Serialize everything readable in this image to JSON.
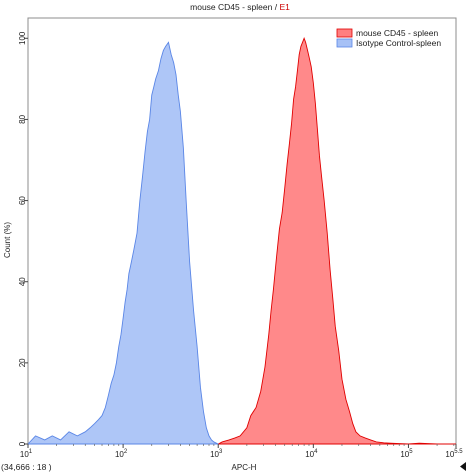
{
  "chart_data": {
    "type": "area",
    "title": {
      "main": "mouse CD45 - spleen",
      "separator": " / ",
      "gate": "E1",
      "gate_color": "#cc0000"
    },
    "xlabel": "APC-H",
    "ylabel": "Count (%)",
    "x_scale": "log",
    "x_range": [
      10,
      316228
    ],
    "y_range": [
      0,
      105
    ],
    "grid": false,
    "legend_position": "top-right",
    "x_ticks": [
      {
        "value": 10,
        "base": "10",
        "exp": "1"
      },
      {
        "value": 100,
        "base": "10",
        "exp": "2"
      },
      {
        "value": 1000,
        "base": "10",
        "exp": "3"
      },
      {
        "value": 10000,
        "base": "10",
        "exp": "4"
      },
      {
        "value": 100000,
        "base": "10",
        "exp": "5"
      },
      {
        "value": 316228,
        "base": "10",
        "exp": "5.5"
      }
    ],
    "y_ticks": [
      {
        "value": 0,
        "label": "0"
      },
      {
        "value": 20,
        "label": "20"
      },
      {
        "value": 40,
        "label": "40"
      },
      {
        "value": 60,
        "label": "60"
      },
      {
        "value": 80,
        "label": "80"
      },
      {
        "value": 100,
        "label": "100"
      }
    ],
    "series": [
      {
        "name": "mouse CD45 - spleen",
        "fill": "#ff7f80",
        "stroke": "#e00000",
        "x": [
          1000,
          1100,
          1300,
          1500,
          1700,
          2000,
          2200,
          2500,
          2800,
          3100,
          3400,
          3600,
          3800,
          4100,
          4400,
          4700,
          5000,
          5300,
          5600,
          5900,
          6200,
          6500,
          6800,
          7100,
          7400,
          7700,
          8000,
          8300,
          8700,
          9100,
          9500,
          10000,
          10500,
          11000,
          11600,
          12200,
          13000,
          14000,
          15000,
          16000,
          17000,
          18500,
          20000,
          22000,
          24000,
          26000,
          28000,
          31000,
          35000,
          40000,
          46000,
          55000,
          65000,
          80000,
          100000,
          130000,
          160000,
          200000,
          250000,
          316228
        ],
        "y": [
          0,
          0.5,
          1,
          1.5,
          2,
          4,
          7,
          9,
          13,
          19,
          27,
          33,
          38,
          46,
          53,
          57,
          63,
          69,
          74,
          79,
          85,
          88,
          92,
          96,
          98,
          99,
          100,
          99,
          97,
          95,
          93,
          89,
          84,
          78,
          71,
          66,
          60,
          52,
          43,
          36,
          29,
          23,
          16,
          11,
          8,
          5,
          3,
          2,
          1.5,
          1,
          0.5,
          0.3,
          0.2,
          0.1,
          0,
          0.2,
          0.1,
          0,
          0,
          0
        ]
      },
      {
        "name": "Isotype Control-spleen",
        "fill": "#a7c1f6",
        "stroke": "#5a86e6",
        "x": [
          10,
          12,
          15,
          18,
          22,
          27,
          33,
          40,
          45,
          50,
          55,
          60,
          65,
          70,
          75,
          80,
          85,
          90,
          95,
          100,
          105,
          110,
          115,
          120,
          130,
          140,
          150,
          160,
          170,
          180,
          190,
          200,
          210,
          220,
          235,
          250,
          265,
          280,
          300,
          320,
          340,
          360,
          380,
          400,
          430,
          460,
          500,
          550,
          600,
          650,
          700,
          750,
          800,
          850,
          900,
          1000
        ],
        "y": [
          0,
          2,
          1,
          2,
          1,
          3,
          2,
          3,
          4,
          5,
          6,
          7,
          9,
          12,
          15,
          17,
          20,
          24,
          27,
          31,
          35,
          38,
          42,
          44,
          48,
          52,
          60,
          66,
          72,
          77,
          80,
          86,
          88,
          90,
          92,
          95,
          97,
          98,
          99,
          96,
          94,
          91,
          86,
          82,
          73,
          60,
          45,
          33,
          24,
          14,
          8,
          4,
          2,
          1,
          0.5,
          0
        ]
      }
    ],
    "cursor_readout": "(34,666 : 18 )"
  }
}
